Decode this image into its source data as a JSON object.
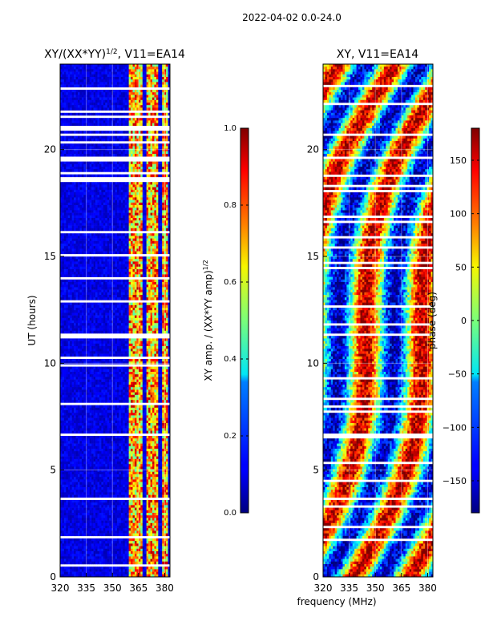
{
  "figure": {
    "suptitle": "2022-04-02 0.0-24.0",
    "shared_xlabel": "frequency (MHz)"
  },
  "chart_data": [
    {
      "type": "heatmap",
      "title": "XY/(XX*YY)",
      "title_sup": "1/2",
      "title_suffix": ", V11=EA14",
      "xlabel": "",
      "ylabel": "UT (hours)",
      "xlim": [
        320,
        383
      ],
      "ylim": [
        0,
        24
      ],
      "xticks": [
        320,
        335,
        350,
        365,
        380
      ],
      "yticks": [
        0,
        5,
        10,
        15,
        20
      ],
      "grid": true,
      "colormap": "jet",
      "bright_channel_columns_mhz": [
        361,
        365,
        371,
        375,
        380
      ],
      "colorbar": {
        "label": "XY amp. / (XX*YY amp)",
        "label_sup": "1/2",
        "range": [
          0.0,
          1.0
        ],
        "ticks": [
          0.0,
          0.2,
          0.4,
          0.6,
          0.8,
          1.0
        ],
        "tick_labels": [
          "0.0",
          "0.2",
          "0.4",
          "0.6",
          "0.8",
          "1.0"
        ]
      }
    },
    {
      "type": "heatmap",
      "title": "XY, V11=EA14",
      "xlabel": "frequency (MHz)",
      "ylabel": "",
      "xlim": [
        320,
        383
      ],
      "ylim": [
        0,
        24
      ],
      "xticks": [
        320,
        335,
        350,
        365,
        380
      ],
      "yticks": [
        0,
        5,
        10,
        15,
        20
      ],
      "grid": true,
      "colormap": "jet",
      "colorbar": {
        "label": "phase (deg)",
        "range": [
          -180,
          180
        ],
        "ticks": [
          -150,
          -100,
          -50,
          0,
          50,
          100,
          150
        ],
        "tick_labels": [
          "−150",
          "−100",
          "−50",
          "0",
          "50",
          "100",
          "150"
        ]
      }
    }
  ]
}
